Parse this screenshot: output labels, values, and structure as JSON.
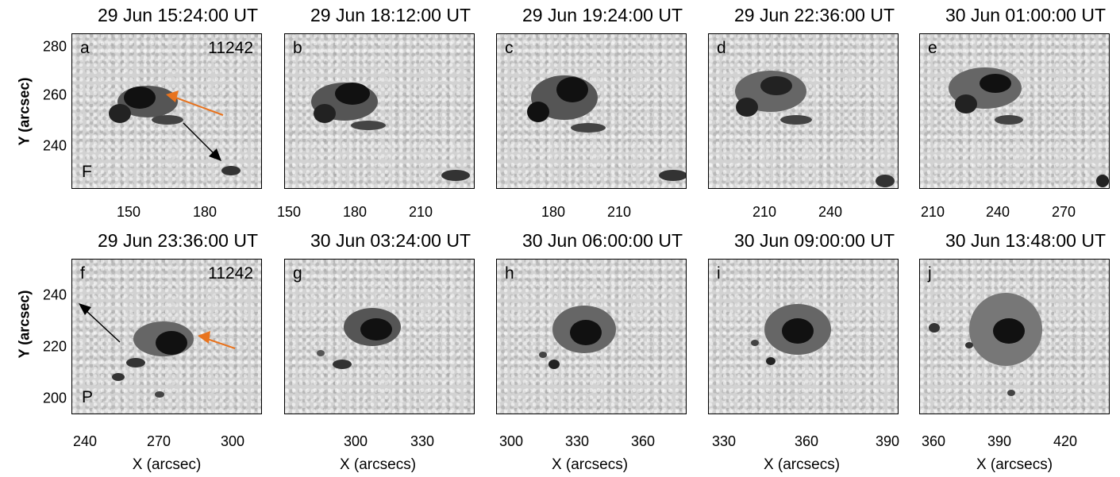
{
  "panels_top": [
    {
      "title": "29 Jun 15:24:00 UT",
      "letter": "a",
      "region": "11242",
      "polarity": "F",
      "xticks": [
        "150",
        "180"
      ]
    },
    {
      "title": "29 Jun 18:12:00 UT",
      "letter": "b",
      "xticks": [
        "150",
        "180",
        "210"
      ]
    },
    {
      "title": "29 Jun 19:24:00 UT",
      "letter": "c",
      "xticks": [
        "180",
        "210"
      ]
    },
    {
      "title": "29 Jun 22:36:00 UT",
      "letter": "d",
      "xticks": [
        "210",
        "240"
      ]
    },
    {
      "title": "30 Jun 01:00:00 UT",
      "letter": "e",
      "xticks": [
        "210",
        "240",
        "270"
      ]
    }
  ],
  "panels_bottom": [
    {
      "title": "29 Jun 23:36:00 UT",
      "letter": "f",
      "region": "11242",
      "polarity": "P",
      "xticks": [
        "240",
        "270",
        "300"
      ],
      "xlabel": "X (arcsec)"
    },
    {
      "title": "30 Jun 03:24:00 UT",
      "letter": "g",
      "xticks": [
        "300",
        "330"
      ],
      "xlabel": "X (arcsecs)"
    },
    {
      "title": "30 Jun 06:00:00 UT",
      "letter": "h",
      "xticks": [
        "300",
        "330",
        "360"
      ],
      "xlabel": "X (arcsecs)"
    },
    {
      "title": "30 Jun 09:00:00 UT",
      "letter": "i",
      "xticks": [
        "330",
        "360",
        "390"
      ],
      "xlabel": "X (arcsecs)"
    },
    {
      "title": "30 Jun 13:48:00 UT",
      "letter": "j",
      "xticks": [
        "360",
        "390",
        "420"
      ],
      "xlabel": "X (arcsecs)"
    }
  ],
  "yaxis_top": {
    "label": "Y (arcsec)",
    "ticks": [
      "280",
      "260",
      "240"
    ]
  },
  "yaxis_bottom": {
    "label": "Y (arcsec)",
    "ticks": [
      "240",
      "220",
      "200"
    ]
  },
  "colors": {
    "orange_arrow": "#e8731e",
    "black_arrow": "#000000"
  }
}
